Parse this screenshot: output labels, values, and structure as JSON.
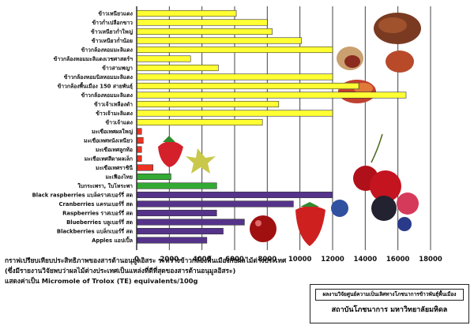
{
  "chart_data": {
    "type": "bar",
    "orientation": "horizontal",
    "xlim": [
      0,
      18000
    ],
    "ticks": [
      0,
      2000,
      4000,
      6000,
      8000,
      10000,
      12000,
      14000,
      16000,
      18000
    ],
    "grid": true,
    "categories": [
      "ข้าวเหนียวแดง",
      "ข้าวก่ำเปลือกขาว",
      "ข้าวเหนียวก่ำใหญ่",
      "ข้าวเหนียวก่ำน้อย",
      "ข้าวกล้องหอมมะลิแดง",
      "ข้าวกล้องหอมมะลิแดงเวชศาสตร์ฯ",
      "ข้าวสามพญา",
      "ข้าวกล้องหอมนิลหอมมะลิแดง",
      "ข้าวกล้องพื้นเมือง 150 สายพันธุ์",
      "ข้าวกล้องหอมมะลิแดง",
      "ข้าวเจ้าเหลืองดำ",
      "ข้าวเจ้ามะลิแดง",
      "ข้าวเจ้าแดง",
      "มะเขือเทศผลใหญ่",
      "มะเขือเทศหนังเหนียว",
      "มะเขือเทศลูกท้อ",
      "มะเขือเทศสีดาผลเล็ก",
      "มะเขือเทศราชินี",
      "มะเฟืองไทย",
      "ใบกระเพรา, ใบโหระพา",
      "Black raspberries แบล็คราสเบอร์รี่ สด",
      "Cranberries แครนเบอร์รี่ สด",
      "Raspberries ราสเบอร์รี่ สด",
      "Blueberries บลูเบอร์รี่ สด",
      "Blackberries แบล็กเบอร์รี่ สด",
      "Apples แอปเปิ้ล"
    ],
    "values": [
      6100,
      8000,
      8300,
      10100,
      12000,
      3300,
      5000,
      12000,
      13600,
      16500,
      8700,
      12000,
      7700,
      300,
      400,
      300,
      300,
      1000,
      2100,
      4900,
      12000,
      9600,
      4900,
      6600,
      5300,
      4300
    ],
    "bar_groups": [
      {
        "from": 0,
        "to": 12,
        "color": "#ffff33"
      },
      {
        "from": 13,
        "to": 17,
        "color": "#ee3322"
      },
      {
        "from": 18,
        "to": 19,
        "color": "#33aa33"
      },
      {
        "from": 20,
        "to": 25,
        "color": "#55338a"
      }
    ],
    "caption": [
      "กราฟเปรียบเทียบประสิทธิภาพของสารต้านอนุมูลอิสระ ระหว่างข้าวกล้องพื้นเมืองกับผลไม้ต่างประเทศ",
      "(ซึ่งมีรายงานวิจัยพบว่าผลไม้ต่างประเทศเป็นแหล่งที่ดีที่สุดของสารต้านอนุมูลอิสระ)",
      "แสดงค่าเป็น Micromole of Trolox (TE) equivalents/100g"
    ],
    "credit": {
      "line1": "ผลงานวิจัยศูนย์ความเป็นเลิศทางโภชนาการข้าวพันธุ์พื้นเมือง",
      "line2": "สถาบันโภชนาการ มหาวิทยาลัยมหิดล"
    }
  }
}
